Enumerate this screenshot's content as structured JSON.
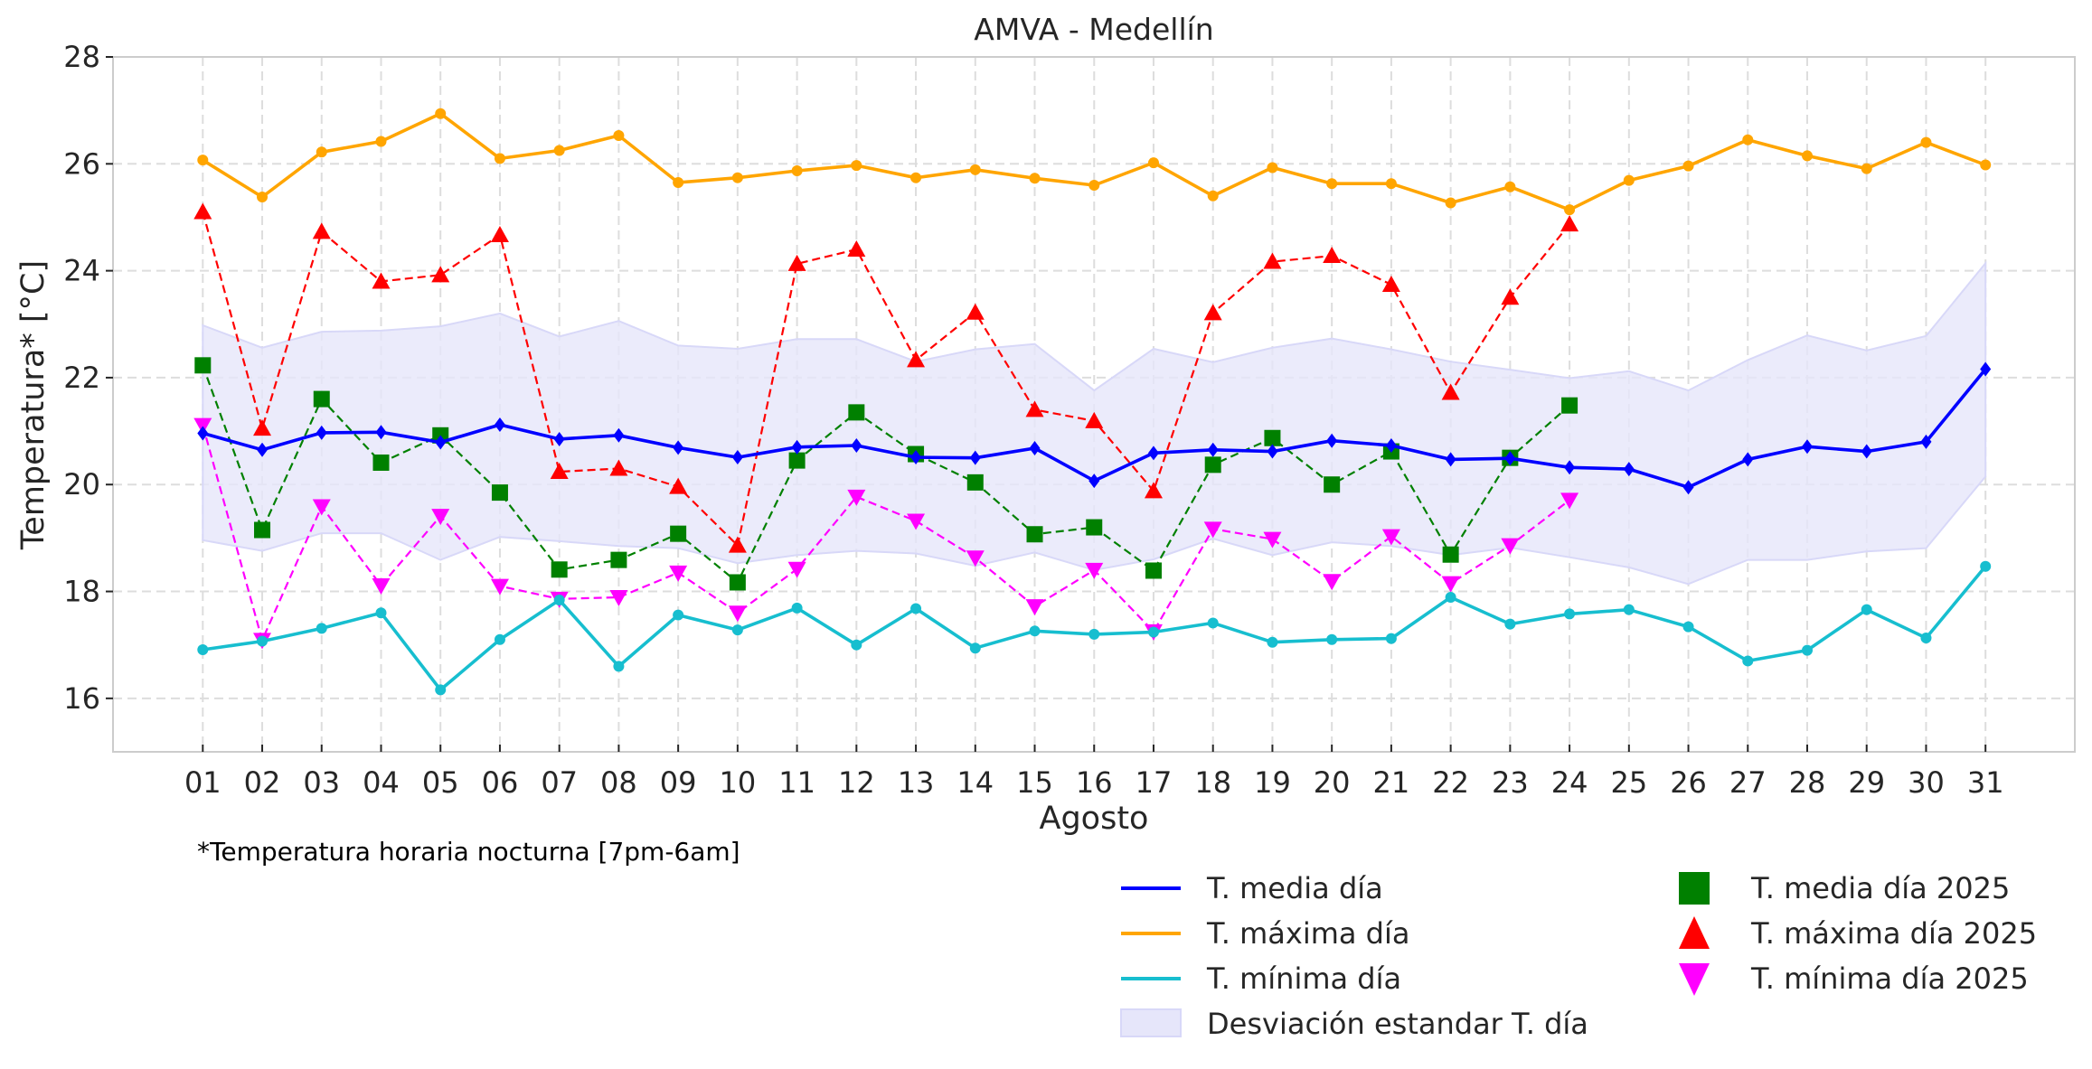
{
  "chart_data": {
    "type": "line",
    "title": "AMVA - Medellín",
    "xlabel": "Agosto",
    "ylabel": "Temperatura* [°C]",
    "footnote": "*Temperatura horaria nocturna [7pm-6am]",
    "ylim": [
      15,
      28
    ],
    "xlim": [
      -0.5,
      32.5
    ],
    "yticks": [
      16,
      18,
      20,
      22,
      24,
      26,
      28
    ],
    "grid": true,
    "legend_position": "bottom-right (below plot)",
    "categories": [
      "01",
      "02",
      "03",
      "04",
      "05",
      "06",
      "07",
      "08",
      "09",
      "10",
      "11",
      "12",
      "13",
      "14",
      "15",
      "16",
      "17",
      "18",
      "19",
      "20",
      "21",
      "22",
      "23",
      "24",
      "25",
      "26",
      "27",
      "28",
      "29",
      "30",
      "31"
    ],
    "series": [
      {
        "name": "T. media día",
        "style": "solid-line-diamond",
        "color": "#0000ff",
        "values": [
          20.96,
          20.65,
          20.97,
          20.98,
          20.79,
          21.12,
          20.85,
          20.92,
          20.69,
          20.51,
          20.7,
          20.73,
          20.51,
          20.5,
          20.68,
          20.07,
          20.59,
          20.65,
          20.62,
          20.82,
          20.73,
          20.47,
          20.49,
          20.32,
          20.29,
          19.95,
          20.47,
          20.71,
          20.62,
          20.8,
          22.16
        ]
      },
      {
        "name": "T. máxima día",
        "style": "solid-line-circle",
        "color": "#ffa500",
        "values": [
          26.07,
          25.38,
          26.22,
          26.42,
          26.94,
          26.1,
          26.25,
          26.53,
          25.65,
          25.74,
          25.87,
          25.97,
          25.74,
          25.89,
          25.73,
          25.6,
          26.02,
          25.4,
          25.93,
          25.63,
          25.63,
          25.27,
          25.57,
          25.14,
          25.69,
          25.96,
          26.45,
          26.15,
          25.91,
          26.4,
          25.98
        ]
      },
      {
        "name": "T. mínima día",
        "style": "solid-line-circle",
        "color": "#17becf",
        "values": [
          16.91,
          17.07,
          17.31,
          17.6,
          16.16,
          17.1,
          17.84,
          16.6,
          17.56,
          17.28,
          17.69,
          17.0,
          17.68,
          16.94,
          17.26,
          17.2,
          17.24,
          17.41,
          17.05,
          17.1,
          17.12,
          17.89,
          17.39,
          17.58,
          17.66,
          17.34,
          16.7,
          16.9,
          17.66,
          17.13,
          18.47
        ]
      },
      {
        "name": "T. media día 2025",
        "style": "dashed-square",
        "color": "#008000",
        "values": [
          22.23,
          19.15,
          21.6,
          20.41,
          20.92,
          19.85,
          18.41,
          18.59,
          19.08,
          18.17,
          20.45,
          21.35,
          20.57,
          20.04,
          19.07,
          19.2,
          18.39,
          20.37,
          20.87,
          20.0,
          20.62,
          18.69,
          20.5,
          21.48,
          null,
          null,
          null,
          null,
          null,
          null,
          null
        ]
      },
      {
        "name": "T. máxima día 2025",
        "style": "dashed-triangle-up",
        "color": "#ff0000",
        "values": [
          25.1,
          21.05,
          24.73,
          23.8,
          23.92,
          24.67,
          20.24,
          20.3,
          19.96,
          18.86,
          24.13,
          24.4,
          22.33,
          23.22,
          21.4,
          21.19,
          19.88,
          23.21,
          24.17,
          24.28,
          23.74,
          21.72,
          23.5,
          24.87,
          null,
          null,
          null,
          null,
          null,
          null,
          null
        ]
      },
      {
        "name": "T. mínima día 2025",
        "style": "dashed-triangle-down",
        "color": "#ff00ff",
        "values": [
          21.11,
          17.09,
          19.59,
          18.11,
          19.41,
          18.1,
          17.86,
          17.89,
          18.35,
          17.6,
          18.42,
          19.77,
          19.32,
          18.63,
          17.72,
          18.4,
          17.25,
          19.17,
          18.98,
          18.19,
          19.03,
          18.15,
          18.86,
          19.71,
          null,
          null,
          null,
          null,
          null,
          null,
          null
        ]
      }
    ],
    "band": {
      "name": "Desviación estandar T. día",
      "color": "#e6e6fa",
      "upper": [
        22.98,
        22.56,
        22.86,
        22.88,
        22.96,
        23.2,
        22.77,
        23.06,
        22.6,
        22.54,
        22.72,
        22.72,
        22.3,
        22.53,
        22.63,
        21.76,
        22.54,
        22.29,
        22.56,
        22.73,
        22.53,
        22.3,
        22.15,
        21.99,
        22.12,
        21.76,
        22.33,
        22.79,
        22.51,
        22.78,
        24.14
      ],
      "lower": [
        18.96,
        18.76,
        19.09,
        19.09,
        18.59,
        19.02,
        18.94,
        18.85,
        18.81,
        18.53,
        18.68,
        18.76,
        18.71,
        18.48,
        18.73,
        18.4,
        18.6,
        18.99,
        18.68,
        18.92,
        18.85,
        18.68,
        18.82,
        18.64,
        18.45,
        18.14,
        18.59,
        18.59,
        18.75,
        18.81,
        20.15
      ]
    },
    "legend": [
      {
        "label": "T. media día",
        "kind": "line",
        "color": "#0000ff"
      },
      {
        "label": "T. máxima día",
        "kind": "line",
        "color": "#ffa500"
      },
      {
        "label": "T. mínima día",
        "kind": "line",
        "color": "#17becf"
      },
      {
        "label": "Desviación estandar T. día",
        "kind": "patch",
        "color": "#e6e6fa"
      },
      {
        "label": "T. media día 2025",
        "kind": "square",
        "color": "#008000"
      },
      {
        "label": "T. máxima día 2025",
        "kind": "triangle-up",
        "color": "#ff0000"
      },
      {
        "label": "T. mínima día 2025",
        "kind": "triangle-down",
        "color": "#ff00ff"
      }
    ]
  }
}
